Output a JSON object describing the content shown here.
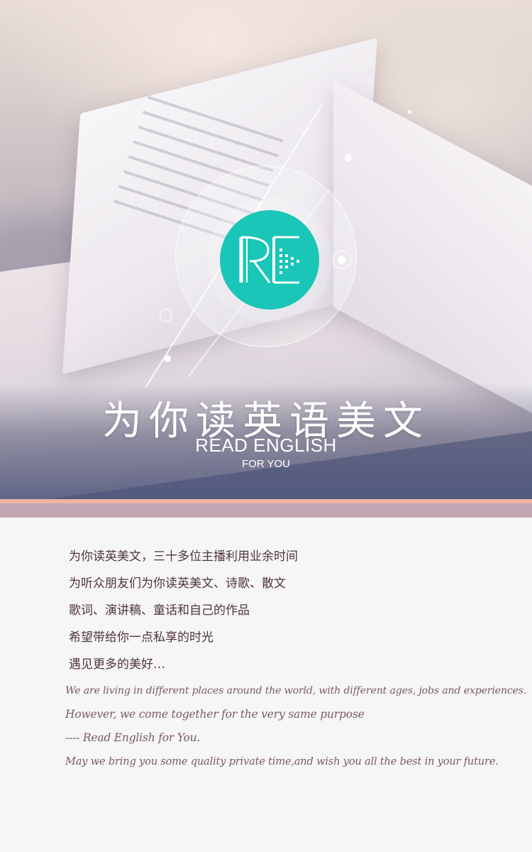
{
  "hero": {
    "logo_text": "RE",
    "title_cn": "为你读英语美文",
    "title_en": "READ ENGLISH",
    "subtitle_en": "FOR YOU"
  },
  "colors": {
    "logo_teal": "#1ac6b8",
    "stripe_salmon": "#f0b3a5",
    "stripe_mauve": "#c2a7b3",
    "text_dark": "#4d3540",
    "text_script": "#7a5a68"
  },
  "intro_cn": [
    "为你读英美文，三十多位主播利用业余时间",
    "为听众朋友们为你读英美文、诗歌、散文",
    "歌词、演讲稿、童话和自己的作品",
    "希望带给你一点私享的时光",
    "遇见更多的美好…"
  ],
  "intro_en": [
    "We are living in different places around the world, with different ages, jobs and experiences.",
    "However, we come together for the very same purpose",
    "---- Read English for You.",
    "May we bring you some quality private time,and wish you all the best in your future."
  ]
}
